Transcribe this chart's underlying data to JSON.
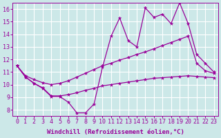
{
  "background_color": "#cce8e8",
  "grid_color": "#ffffff",
  "line_color": "#990099",
  "x_data": [
    0,
    1,
    2,
    3,
    4,
    5,
    6,
    7,
    8,
    9,
    10,
    11,
    12,
    13,
    14,
    15,
    16,
    17,
    18,
    19,
    20,
    21,
    22,
    23
  ],
  "y_main": [
    11.5,
    10.6,
    10.1,
    9.7,
    9.05,
    9.05,
    8.6,
    7.75,
    7.75,
    8.45,
    11.4,
    13.85,
    15.3,
    13.5,
    13.0,
    16.1,
    15.35,
    15.6,
    14.85,
    16.5,
    14.85,
    12.4,
    11.7,
    11.0
  ],
  "y_upper": [
    11.5,
    10.7,
    10.4,
    10.15,
    10.0,
    10.1,
    10.3,
    10.6,
    10.9,
    11.2,
    11.5,
    11.7,
    11.95,
    12.15,
    12.4,
    12.6,
    12.85,
    13.1,
    13.35,
    13.6,
    13.85,
    11.7,
    11.1,
    10.9
  ],
  "y_lower": [
    11.5,
    10.6,
    10.1,
    9.75,
    9.1,
    9.1,
    9.2,
    9.35,
    9.55,
    9.7,
    9.9,
    10.0,
    10.1,
    10.2,
    10.3,
    10.4,
    10.5,
    10.55,
    10.6,
    10.65,
    10.7,
    10.65,
    10.6,
    10.55
  ],
  "xlabel": "Windchill (Refroidissement éolien,°C)",
  "ylabel": "",
  "xlim": [
    -0.5,
    23.5
  ],
  "ylim": [
    7.5,
    16.5
  ],
  "yticks": [
    8,
    9,
    10,
    11,
    12,
    13,
    14,
    15,
    16
  ],
  "xticks": [
    0,
    1,
    2,
    3,
    4,
    5,
    6,
    7,
    8,
    9,
    10,
    11,
    12,
    13,
    14,
    15,
    16,
    17,
    18,
    19,
    20,
    21,
    22,
    23
  ],
  "marker": "*",
  "markersize": 3.5,
  "linewidth": 0.9,
  "xlabel_fontsize": 6.5,
  "tick_fontsize": 6.0,
  "main_marker_x": [
    0,
    1,
    2,
    3,
    4,
    5,
    6,
    7,
    8,
    9,
    10,
    11,
    12,
    13,
    14,
    15,
    16,
    17,
    18,
    19,
    20,
    21,
    22,
    23
  ],
  "upper_marker_x": [
    0,
    1,
    2,
    5,
    10,
    13,
    15,
    17,
    19,
    20,
    21,
    22,
    23
  ],
  "lower_marker_x": [
    0,
    1,
    2,
    5,
    10,
    13,
    15,
    17,
    19,
    20,
    21,
    22,
    23
  ]
}
